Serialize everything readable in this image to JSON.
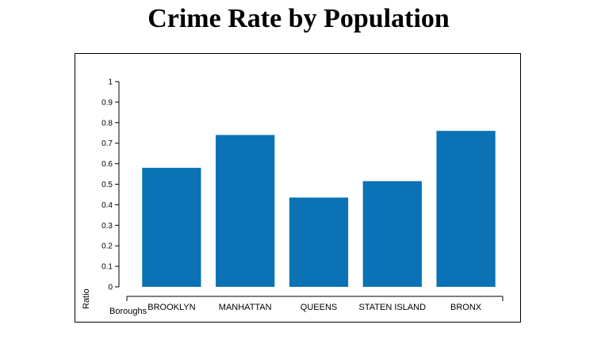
{
  "page": {
    "title": "Crime Rate by Population"
  },
  "chart_data": {
    "type": "bar",
    "title": "Crime Rate by Population",
    "xlabel": "Boroughs",
    "ylabel": "Ratio",
    "categories": [
      "BROOKLYN",
      "MANHATTAN",
      "QUEENS",
      "STATEN ISLAND",
      "BRONX"
    ],
    "values": [
      0.58,
      0.74,
      0.435,
      0.515,
      0.76
    ],
    "ylim": [
      0,
      1
    ],
    "yticks": [
      "0",
      "0.1",
      "0.2",
      "0.3",
      "0.4",
      "0.5",
      "0.6",
      "0.7",
      "0.8",
      "0.9",
      "1"
    ],
    "grid": false,
    "bar_color": "#0a72b5"
  }
}
